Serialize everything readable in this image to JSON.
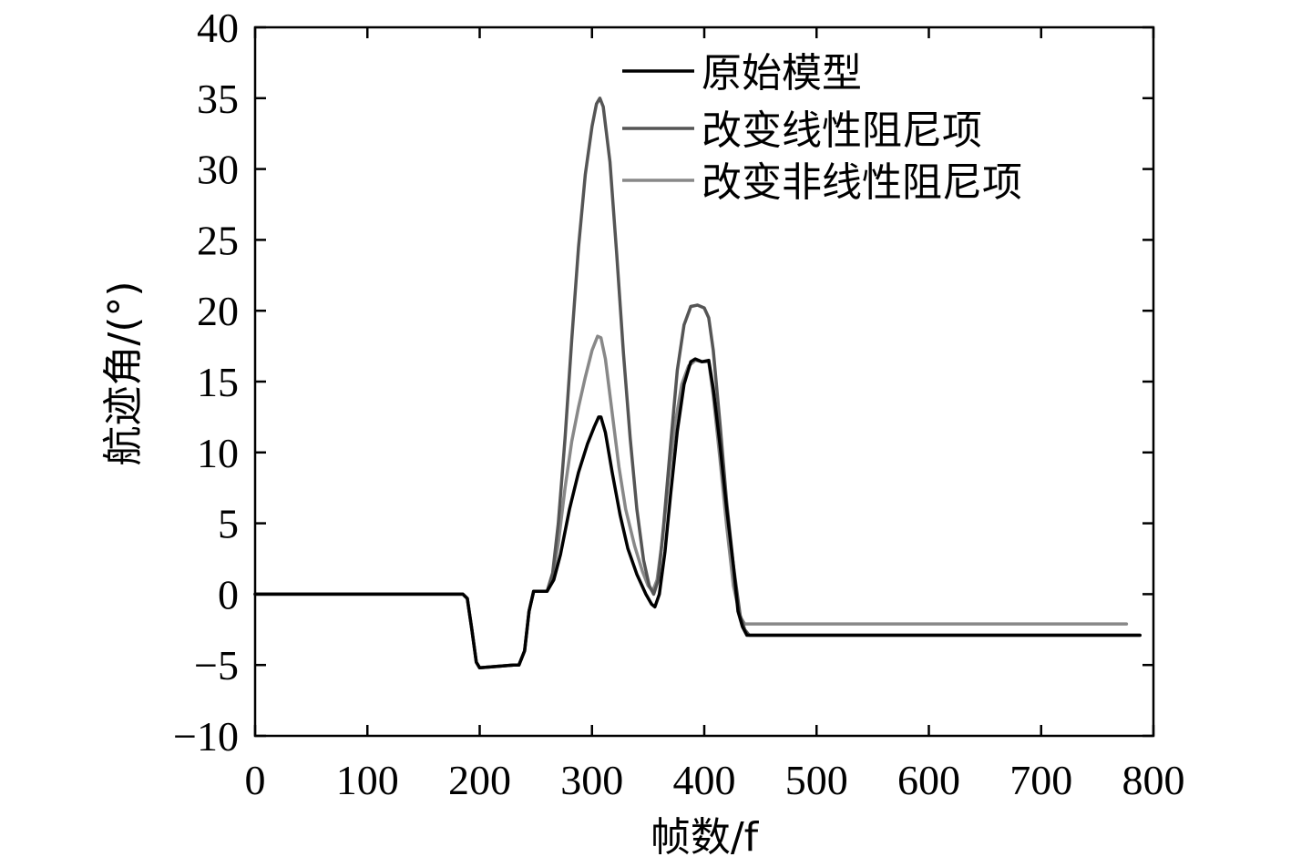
{
  "chart_data": {
    "type": "line",
    "title": "",
    "xlabel": "帧数/f",
    "ylabel": "航迹角/(°)",
    "xlim": [
      0,
      800
    ],
    "ylim": [
      -10,
      40
    ],
    "xticks": [
      "0",
      "100",
      "200",
      "300",
      "400",
      "500",
      "600",
      "700",
      "800"
    ],
    "yticks": [
      "−10",
      "−5",
      "0",
      "5",
      "10",
      "15",
      "20",
      "25",
      "30",
      "35",
      "40"
    ],
    "grid": false,
    "legend_position": "top-right",
    "series": [
      {
        "name": "原始模型",
        "color": "#000000",
        "points": [
          [
            0,
            0
          ],
          [
            185,
            0
          ],
          [
            189,
            -0.3
          ],
          [
            193,
            -2.5
          ],
          [
            197,
            -4.8
          ],
          [
            200,
            -5.2
          ],
          [
            215,
            -5.1
          ],
          [
            230,
            -5.0
          ],
          [
            235,
            -5.0
          ],
          [
            240,
            -4.0
          ],
          [
            244,
            -1.2
          ],
          [
            248,
            0.2
          ],
          [
            252,
            0.2
          ],
          [
            260,
            0.2
          ],
          [
            266,
            1.0
          ],
          [
            272,
            2.8
          ],
          [
            280,
            6.0
          ],
          [
            288,
            8.6
          ],
          [
            296,
            10.6
          ],
          [
            302,
            11.8
          ],
          [
            306,
            12.5
          ],
          [
            308,
            12.5
          ],
          [
            312,
            11.4
          ],
          [
            318,
            8.6
          ],
          [
            325,
            5.6
          ],
          [
            332,
            3.2
          ],
          [
            340,
            1.4
          ],
          [
            348,
            0.0
          ],
          [
            353,
            -0.7
          ],
          [
            356,
            -0.9
          ],
          [
            360,
            0.0
          ],
          [
            365,
            3.0
          ],
          [
            370,
            7.0
          ],
          [
            376,
            11.5
          ],
          [
            382,
            14.8
          ],
          [
            388,
            16.4
          ],
          [
            392,
            16.6
          ],
          [
            398,
            16.4
          ],
          [
            404,
            16.5
          ],
          [
            408,
            14.5
          ],
          [
            414,
            10.5
          ],
          [
            420,
            6.0
          ],
          [
            426,
            2.0
          ],
          [
            430,
            -1.2
          ],
          [
            434,
            -2.3
          ],
          [
            438,
            -2.9
          ],
          [
            450,
            -2.9
          ],
          [
            600,
            -2.9
          ],
          [
            788,
            -2.9
          ]
        ]
      },
      {
        "name": "改变线性阻尼项",
        "color": "#555555",
        "points": [
          [
            0,
            0
          ],
          [
            185,
            0
          ],
          [
            189,
            -0.3
          ],
          [
            193,
            -2.5
          ],
          [
            197,
            -4.8
          ],
          [
            200,
            -5.2
          ],
          [
            215,
            -5.1
          ],
          [
            230,
            -5.0
          ],
          [
            235,
            -5.0
          ],
          [
            240,
            -4.0
          ],
          [
            244,
            -1.2
          ],
          [
            248,
            0.2
          ],
          [
            252,
            0.2
          ],
          [
            260,
            0.2
          ],
          [
            265,
            1.5
          ],
          [
            270,
            5.0
          ],
          [
            276,
            11.0
          ],
          [
            282,
            18.0
          ],
          [
            288,
            24.5
          ],
          [
            294,
            29.6
          ],
          [
            300,
            33.0
          ],
          [
            304,
            34.6
          ],
          [
            307,
            35.0
          ],
          [
            310,
            34.4
          ],
          [
            316,
            30.5
          ],
          [
            322,
            24.0
          ],
          [
            328,
            17.0
          ],
          [
            334,
            11.0
          ],
          [
            340,
            6.0
          ],
          [
            346,
            2.4
          ],
          [
            351,
            0.6
          ],
          [
            355,
            0.0
          ],
          [
            359,
            1.0
          ],
          [
            364,
            5.0
          ],
          [
            370,
            10.5
          ],
          [
            376,
            15.8
          ],
          [
            382,
            19.0
          ],
          [
            388,
            20.3
          ],
          [
            394,
            20.4
          ],
          [
            400,
            20.2
          ],
          [
            404,
            19.5
          ],
          [
            408,
            17.2
          ],
          [
            414,
            12.0
          ],
          [
            420,
            6.5
          ],
          [
            426,
            2.0
          ],
          [
            432,
            -1.5
          ],
          [
            436,
            -2.5
          ],
          [
            440,
            -2.9
          ],
          [
            450,
            -2.9
          ],
          [
            600,
            -2.9
          ],
          [
            788,
            -2.9
          ]
        ]
      },
      {
        "name": "改变非线性阻尼项",
        "color": "#888888",
        "points": [
          [
            0,
            0
          ],
          [
            185,
            0
          ],
          [
            189,
            -0.3
          ],
          [
            193,
            -2.5
          ],
          [
            197,
            -4.8
          ],
          [
            200,
            -5.2
          ],
          [
            215,
            -5.1
          ],
          [
            230,
            -5.0
          ],
          [
            235,
            -5.0
          ],
          [
            240,
            -4.0
          ],
          [
            244,
            -1.2
          ],
          [
            248,
            0.2
          ],
          [
            252,
            0.2
          ],
          [
            260,
            0.2
          ],
          [
            265,
            1.2
          ],
          [
            270,
            3.6
          ],
          [
            276,
            7.5
          ],
          [
            282,
            10.8
          ],
          [
            288,
            13.2
          ],
          [
            294,
            15.3
          ],
          [
            300,
            17.2
          ],
          [
            305,
            18.2
          ],
          [
            308,
            18.1
          ],
          [
            312,
            16.6
          ],
          [
            318,
            12.8
          ],
          [
            324,
            9.0
          ],
          [
            330,
            6.0
          ],
          [
            338,
            3.4
          ],
          [
            345,
            1.6
          ],
          [
            350,
            0.6
          ],
          [
            354,
            0.2
          ],
          [
            358,
            1.0
          ],
          [
            363,
            4.0
          ],
          [
            368,
            8.0
          ],
          [
            374,
            12.0
          ],
          [
            380,
            14.8
          ],
          [
            386,
            16.1
          ],
          [
            392,
            16.5
          ],
          [
            398,
            16.4
          ],
          [
            404,
            16.4
          ],
          [
            408,
            14.0
          ],
          [
            414,
            9.5
          ],
          [
            420,
            4.8
          ],
          [
            426,
            0.6
          ],
          [
            432,
            -1.6
          ],
          [
            436,
            -2.1
          ],
          [
            445,
            -2.1
          ],
          [
            600,
            -2.1
          ],
          [
            776,
            -2.1
          ]
        ]
      }
    ]
  }
}
